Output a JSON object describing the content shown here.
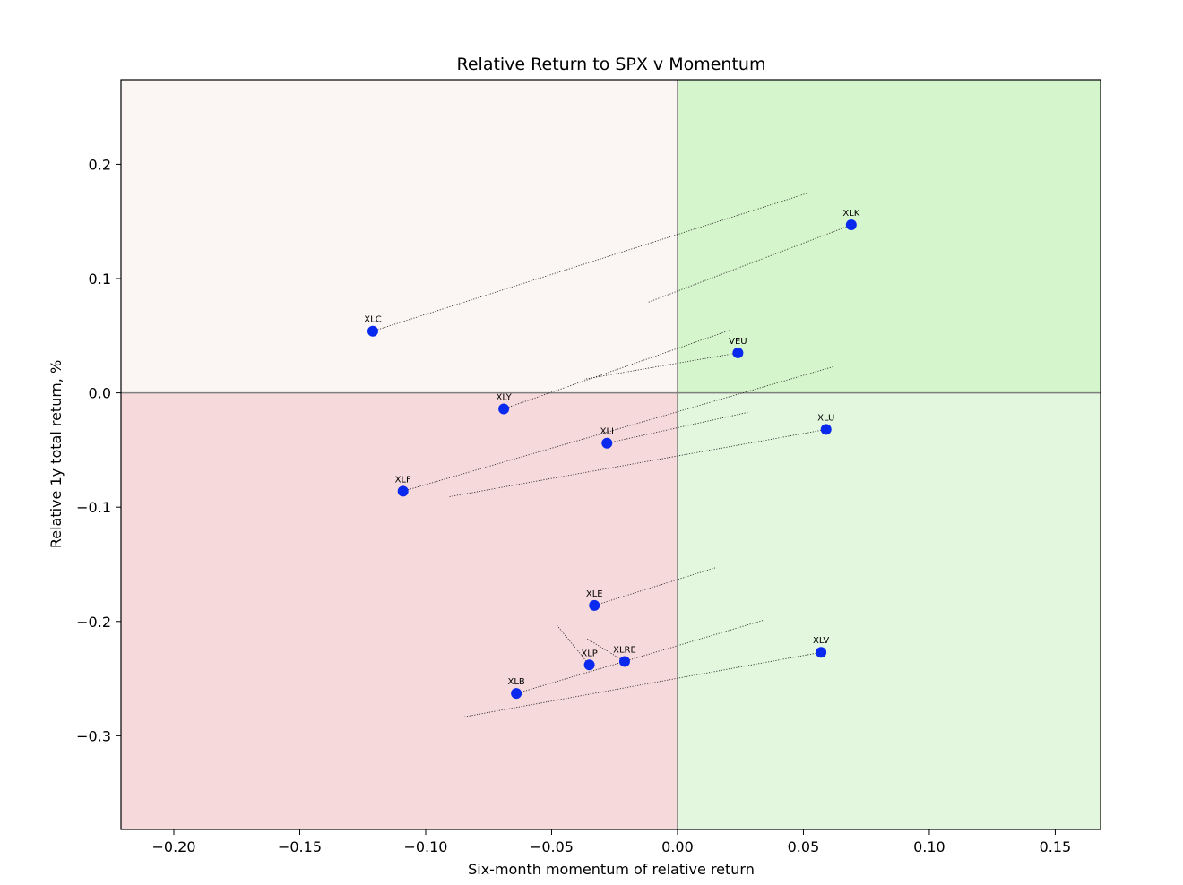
{
  "chart_data": {
    "type": "scatter",
    "title": "Relative Return to SPX v Momentum",
    "xlabel": "Six-month momentum of relative return",
    "ylabel": "Relative 1y total return, %",
    "xlim": [
      -0.221,
      0.168
    ],
    "ylim": [
      -0.382,
      0.274
    ],
    "xticks": [
      -0.2,
      -0.15,
      -0.1,
      -0.05,
      0.0,
      0.05,
      0.1,
      0.15
    ],
    "xtick_labels": [
      "−0.20",
      "−0.15",
      "−0.10",
      "−0.05",
      "0.00",
      "0.05",
      "0.10",
      "0.15"
    ],
    "yticks": [
      0.2,
      0.1,
      0.0,
      -0.1,
      -0.2,
      -0.3
    ],
    "ytick_labels": [
      "0.2",
      "0.1",
      "0.0",
      "−0.1",
      "−0.2",
      "−0.3"
    ],
    "grid": false,
    "quadrant_colors": {
      "top_left": "#fbf6f4",
      "top_right": "#d5f6cc",
      "bottom_left": "#f5d9db",
      "bottom_right": "#e2f7de"
    },
    "axis_line_color": "#808080",
    "point_color": "#0a29ee",
    "trail_color": "#222222",
    "points": [
      {
        "label": "XLC",
        "x": -0.121,
        "y": 0.054,
        "trail_x": 0.052,
        "trail_y": 0.175
      },
      {
        "label": "XLK",
        "x": 0.069,
        "y": 0.147,
        "trail_x": -0.012,
        "trail_y": 0.079
      },
      {
        "label": "VEU",
        "x": 0.024,
        "y": 0.035,
        "trail_x": -0.037,
        "trail_y": 0.012
      },
      {
        "label": "XLY",
        "x": -0.069,
        "y": -0.014,
        "trail_x": 0.021,
        "trail_y": 0.055
      },
      {
        "label": "XLI",
        "x": -0.028,
        "y": -0.044,
        "trail_x": 0.028,
        "trail_y": -0.017
      },
      {
        "label": "XLU",
        "x": 0.059,
        "y": -0.032,
        "trail_x": -0.091,
        "trail_y": -0.091
      },
      {
        "label": "XLF",
        "x": -0.109,
        "y": -0.086,
        "trail_x": 0.062,
        "trail_y": 0.023
      },
      {
        "label": "XLE",
        "x": -0.033,
        "y": -0.186,
        "trail_x": 0.015,
        "trail_y": -0.153
      },
      {
        "label": "XLV",
        "x": 0.057,
        "y": -0.227,
        "trail_x": -0.086,
        "trail_y": -0.284
      },
      {
        "label": "XLRE",
        "x": -0.021,
        "y": -0.235,
        "trail_x": -0.036,
        "trail_y": -0.215
      },
      {
        "label": "XLP",
        "x": -0.035,
        "y": -0.238,
        "trail_x": -0.048,
        "trail_y": -0.203
      },
      {
        "label": "XLB",
        "x": -0.064,
        "y": -0.263,
        "trail_x": 0.034,
        "trail_y": -0.199
      }
    ]
  }
}
